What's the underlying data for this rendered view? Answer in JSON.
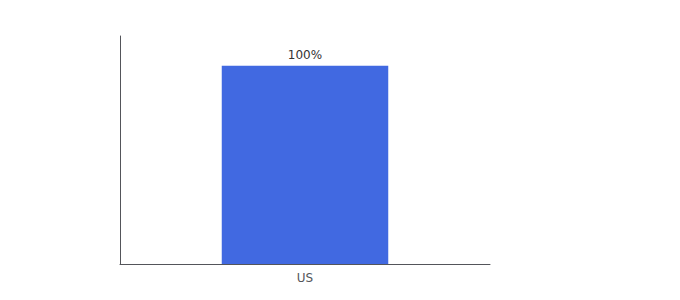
{
  "chart_data": {
    "type": "bar",
    "categories": [
      "US"
    ],
    "values": [
      100
    ],
    "value_labels": [
      "100%"
    ],
    "color": "#4169e1",
    "ylim": [
      0,
      115
    ],
    "data_labels": true,
    "tick_labels": "x",
    "grid": false
  }
}
